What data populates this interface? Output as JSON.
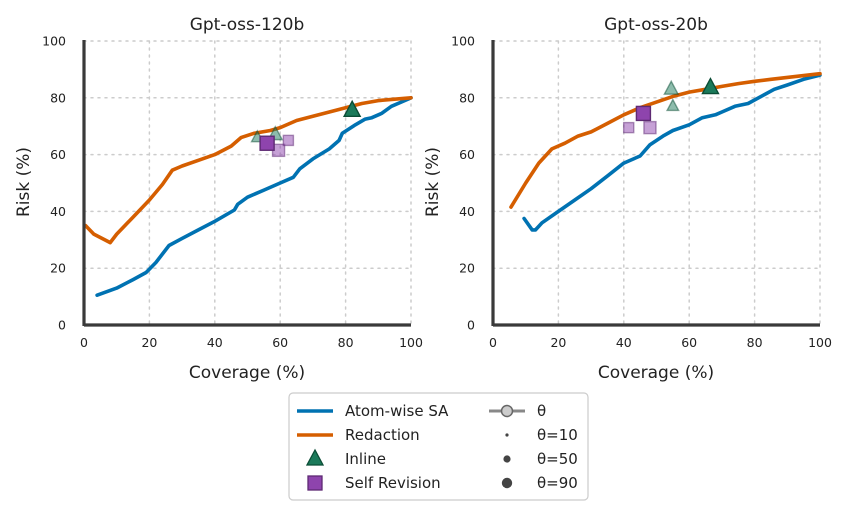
{
  "chart_data": [
    {
      "type": "line",
      "title": "Gpt-oss-120b",
      "xlabel": "Coverage (%)",
      "ylabel": "Risk (%)",
      "xlim": [
        0,
        100
      ],
      "ylim": [
        0,
        100
      ],
      "xticks": [
        0,
        20,
        40,
        60,
        80,
        100
      ],
      "yticks": [
        0,
        20,
        40,
        60,
        80,
        100
      ],
      "grid": true,
      "series": [
        {
          "name": "Atom-wise SA",
          "color": "#0072B2",
          "points": [
            [
              4,
              10.5
            ],
            [
              10,
              13
            ],
            [
              15,
              16
            ],
            [
              19,
              18.5
            ],
            [
              22,
              22
            ],
            [
              26,
              28
            ],
            [
              30,
              30.5
            ],
            [
              35,
              33.5
            ],
            [
              40,
              36.5
            ],
            [
              46,
              40.5
            ],
            [
              47,
              42.5
            ],
            [
              50,
              45
            ],
            [
              55,
              47.5
            ],
            [
              60,
              50
            ],
            [
              64,
              52
            ],
            [
              66,
              55
            ],
            [
              70,
              58.5
            ],
            [
              75,
              62
            ],
            [
              78,
              65
            ],
            [
              79,
              67.5
            ],
            [
              83,
              70.5
            ],
            [
              86,
              72.5
            ],
            [
              88,
              73
            ],
            [
              91,
              74.5
            ],
            [
              94,
              77
            ],
            [
              97,
              78.5
            ],
            [
              100,
              80
            ]
          ]
        },
        {
          "name": "Redaction",
          "color": "#D55E00",
          "points": [
            [
              0.5,
              35
            ],
            [
              3,
              32
            ],
            [
              8,
              29
            ],
            [
              10,
              32
            ],
            [
              15,
              38
            ],
            [
              20,
              44
            ],
            [
              24,
              49.5
            ],
            [
              27,
              54.5
            ],
            [
              30,
              56
            ],
            [
              35,
              58
            ],
            [
              40,
              60
            ],
            [
              45,
              63
            ],
            [
              48,
              66
            ],
            [
              52,
              67.5
            ],
            [
              57,
              68.5
            ],
            [
              60,
              69.5
            ],
            [
              65,
              72
            ],
            [
              70,
              73.5
            ],
            [
              75,
              75
            ],
            [
              80,
              76.5
            ],
            [
              85,
              78
            ],
            [
              90,
              79
            ],
            [
              95,
              79.5
            ],
            [
              100,
              80
            ]
          ]
        }
      ],
      "markers": [
        {
          "group": "Inline",
          "x": 82,
          "y": 75.5,
          "theta": 90,
          "alpha": 1.0
        },
        {
          "group": "Inline",
          "x": 58.5,
          "y": 67,
          "theta": 50,
          "alpha": 0.5
        },
        {
          "group": "Inline",
          "x": 53,
          "y": 66,
          "theta": 10,
          "alpha": 0.5
        },
        {
          "group": "Self Revision",
          "x": 56,
          "y": 64,
          "theta": 90,
          "alpha": 1.0
        },
        {
          "group": "Self Revision",
          "x": 59.5,
          "y": 61.5,
          "theta": 50,
          "alpha": 0.5
        },
        {
          "group": "Self Revision",
          "x": 62.5,
          "y": 65,
          "theta": 10,
          "alpha": 0.5
        }
      ]
    },
    {
      "type": "line",
      "title": "Gpt-oss-20b",
      "xlabel": "Coverage (%)",
      "ylabel": "Risk (%)",
      "xlim": [
        0,
        100
      ],
      "ylim": [
        0,
        100
      ],
      "xticks": [
        0,
        20,
        40,
        60,
        80,
        100
      ],
      "yticks": [
        0,
        20,
        40,
        60,
        80,
        100
      ],
      "grid": true,
      "series": [
        {
          "name": "Atom-wise SA",
          "color": "#0072B2",
          "points": [
            [
              9.5,
              37.5
            ],
            [
              12,
              33.5
            ],
            [
              13,
              33.5
            ],
            [
              15,
              36
            ],
            [
              20,
              40
            ],
            [
              25,
              44
            ],
            [
              30,
              48
            ],
            [
              35,
              52.5
            ],
            [
              40,
              57
            ],
            [
              45,
              59.5
            ],
            [
              48,
              63.5
            ],
            [
              52,
              66.5
            ],
            [
              55,
              68.5
            ],
            [
              60,
              70.5
            ],
            [
              64,
              73
            ],
            [
              68,
              74
            ],
            [
              70,
              75
            ],
            [
              74,
              77
            ],
            [
              78,
              78
            ],
            [
              82,
              80.5
            ],
            [
              86,
              83
            ],
            [
              90,
              84.5
            ],
            [
              95,
              86.5
            ],
            [
              100,
              88
            ]
          ]
        },
        {
          "name": "Redaction",
          "color": "#D55E00",
          "points": [
            [
              5.5,
              41.5
            ],
            [
              10,
              50
            ],
            [
              14,
              57
            ],
            [
              18,
              62
            ],
            [
              22,
              64
            ],
            [
              26,
              66.5
            ],
            [
              30,
              68
            ],
            [
              35,
              71
            ],
            [
              40,
              74
            ],
            [
              45,
              76.5
            ],
            [
              50,
              78.5
            ],
            [
              55,
              80.5
            ],
            [
              60,
              82
            ],
            [
              65,
              83
            ],
            [
              70,
              84
            ],
            [
              75,
              85
            ],
            [
              80,
              85.8
            ],
            [
              85,
              86.5
            ],
            [
              90,
              87.2
            ],
            [
              95,
              87.8
            ],
            [
              100,
              88.5
            ]
          ]
        }
      ],
      "markers": [
        {
          "group": "Inline",
          "x": 66.5,
          "y": 83.5,
          "theta": 90,
          "alpha": 1.0
        },
        {
          "group": "Inline",
          "x": 54.5,
          "y": 83,
          "theta": 50,
          "alpha": 0.5
        },
        {
          "group": "Inline",
          "x": 55,
          "y": 77,
          "theta": 10,
          "alpha": 0.5
        },
        {
          "group": "Self Revision",
          "x": 46,
          "y": 74.5,
          "theta": 90,
          "alpha": 1.0
        },
        {
          "group": "Self Revision",
          "x": 48,
          "y": 69.5,
          "theta": 50,
          "alpha": 0.5
        },
        {
          "group": "Self Revision",
          "x": 41.5,
          "y": 69.5,
          "theta": 10,
          "alpha": 0.5
        }
      ]
    }
  ],
  "legend": {
    "location": "bottom-center",
    "col1": [
      {
        "label": "Atom-wise SA",
        "kind": "line",
        "color": "#0072B2"
      },
      {
        "label": "Redaction",
        "kind": "line",
        "color": "#D55E00"
      },
      {
        "label": "Inline",
        "kind": "triangle",
        "color": "#1B7A5A"
      },
      {
        "label": "Self Revision",
        "kind": "square",
        "color": "#8E44AD"
      }
    ],
    "col2": [
      {
        "label": "θ",
        "kind": "theta-line"
      },
      {
        "label": "θ=10",
        "kind": "dot",
        "theta": 10
      },
      {
        "label": "θ=50",
        "kind": "dot",
        "theta": 50
      },
      {
        "label": "θ=90",
        "kind": "dot",
        "theta": 90
      }
    ]
  }
}
